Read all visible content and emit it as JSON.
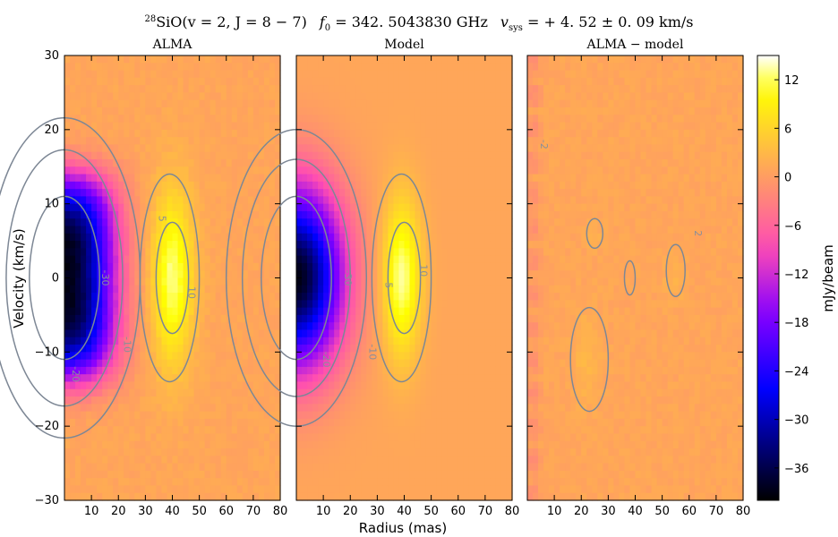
{
  "chart_data": {
    "type": "heatmap",
    "title_parts": {
      "line": "SiO",
      "iso": "28",
      "transition": "(v = 2, J = 8 − 7)",
      "f0": "f",
      "f0_sub": "0",
      "f0_value": " = 342. 5043830 GHz",
      "vsys": "v",
      "vsys_sub": "sys",
      "vsys_value": " = + 4. 52 ± 0. 09 km/s"
    },
    "panels": [
      {
        "title": "ALMA",
        "model": "alma",
        "contours": [
          {
            "level": -30,
            "label": "-30"
          },
          {
            "level": -20,
            "label": "-20"
          },
          {
            "level": -10,
            "label": "-10"
          },
          {
            "level": 5,
            "label": "5"
          },
          {
            "level": 10,
            "label": "10"
          }
        ]
      },
      {
        "title": "Model",
        "model": "model",
        "contours": [
          {
            "level": -30,
            "label": "-30"
          },
          {
            "level": -20,
            "label": "-20"
          },
          {
            "level": -10,
            "label": "-10"
          },
          {
            "level": 5,
            "label": "5"
          },
          {
            "level": 10,
            "label": "10"
          }
        ]
      },
      {
        "title": "ALMA − model",
        "model": "residual",
        "contours": [
          {
            "level": -2,
            "label": "-2"
          },
          {
            "level": 2,
            "label": "2"
          }
        ]
      }
    ],
    "xlabel": "Radius (mas)",
    "ylabel": "Velocity (km/s)",
    "xlim": [
      0,
      80
    ],
    "ylim": [
      -30,
      30
    ],
    "xticks": [
      10,
      20,
      30,
      40,
      50,
      60,
      70,
      80
    ],
    "yticks": [
      -30,
      -20,
      -10,
      0,
      10,
      20,
      30
    ],
    "colorbar": {
      "label": "mJy/beam",
      "vmin": -40,
      "vmax": 15,
      "ticks": [
        12,
        6,
        0,
        -6,
        -12,
        -18,
        -24,
        -30,
        -36
      ]
    },
    "colormap": "gnuplot2",
    "grid": false
  }
}
